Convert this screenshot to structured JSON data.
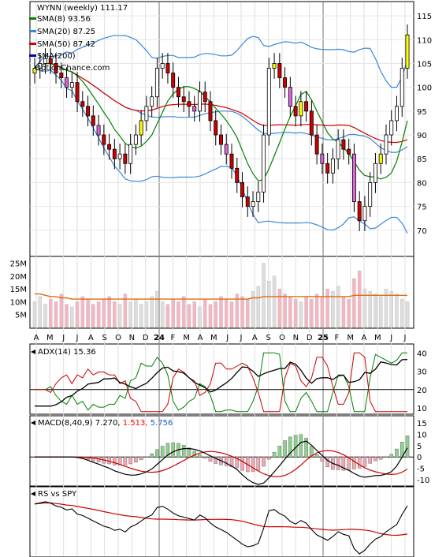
{
  "chart_data": [
    {
      "panel": "price",
      "type": "candlestick",
      "title": "WYNN (weekly)",
      "last_close": "111.17",
      "watermark": "OptionChance.com",
      "legend": [
        {
          "label": "SMA(8)",
          "value": "93.56",
          "color": "#008000"
        },
        {
          "label": "SMA(20)",
          "value": "87.25",
          "color": "#3a86d8"
        },
        {
          "label": "SMA(50)",
          "value": "87.42",
          "color": "#d40000"
        },
        {
          "label": "SMA(200)",
          "value": "",
          "color": "#0000c0"
        }
      ],
      "y_ticks": [
        "115",
        "110",
        "105",
        "100",
        "95",
        "90",
        "85",
        "80",
        "75",
        "70"
      ],
      "ylim": [
        65,
        117
      ],
      "close_approx": [
        104,
        105,
        106,
        105,
        103,
        102,
        100,
        101,
        97,
        96,
        94,
        92,
        90,
        88,
        87,
        85,
        86,
        84,
        88,
        90,
        93,
        96,
        98,
        104,
        105,
        103,
        100,
        98,
        97,
        96,
        95,
        99,
        97,
        93,
        90,
        88,
        86,
        83,
        80,
        77,
        75,
        76,
        78,
        90,
        104,
        105,
        102,
        100,
        96,
        94,
        97,
        95,
        90,
        86,
        84,
        82,
        85,
        89,
        87,
        86,
        76,
        72,
        75,
        80,
        84,
        86,
        90,
        93,
        96,
        104,
        111
      ]
    },
    {
      "panel": "volume",
      "type": "bar",
      "y_ticks": [
        "25M",
        "20M",
        "15M",
        "10M",
        "5M"
      ],
      "ylim": [
        0,
        27
      ],
      "values_m_approx": [
        10,
        12,
        9,
        11,
        10,
        13,
        9,
        8,
        10,
        12,
        11,
        9,
        10,
        11,
        12,
        10,
        9,
        13,
        10,
        11,
        9,
        10,
        12,
        14,
        10,
        9,
        11,
        10,
        12,
        9,
        10,
        8,
        11,
        9,
        10,
        12,
        11,
        10,
        13,
        12,
        11,
        14,
        16,
        25,
        18,
        20,
        15,
        13,
        12,
        11,
        10,
        12,
        11,
        13,
        12,
        15,
        14,
        16,
        12,
        11,
        19,
        22,
        15,
        14,
        13,
        12,
        15,
        14,
        13,
        11,
        10
      ],
      "sma_m_approx": [
        13,
        13,
        12.5,
        12,
        12,
        11.5,
        11.5,
        11,
        11,
        11,
        11,
        11,
        11,
        11,
        11,
        11,
        11,
        11,
        11,
        11,
        11,
        11,
        11,
        11,
        11,
        11,
        11,
        11,
        11,
        11,
        11,
        11,
        11,
        11,
        11,
        11,
        11,
        11,
        11,
        11,
        11,
        11.5,
        11.5,
        12,
        12,
        12,
        12,
        12,
        12,
        12,
        12,
        12,
        12,
        12,
        12,
        12,
        12,
        12,
        12,
        12,
        12.5,
        12.5,
        12.5,
        12.5,
        12.5,
        12.5,
        12.5,
        12.5,
        12.5,
        12.5,
        12.5
      ]
    },
    {
      "panel": "adx",
      "type": "line",
      "label": "ADX(14)",
      "value": "15.36",
      "y_ticks": [
        "40",
        "30",
        "20",
        "10"
      ],
      "ylim": [
        7,
        44
      ]
    },
    {
      "panel": "macd",
      "type": "line+histogram",
      "label": "MACD(8,40,9)",
      "macd": "7.270,",
      "signal": "1.513,",
      "signal_color": "#ff0000",
      "hist": "5.756",
      "hist_color": "#2255cc",
      "y_ticks": [
        "15",
        "10",
        "5",
        "0",
        "-5",
        "-10"
      ],
      "ylim": [
        -12,
        17
      ]
    },
    {
      "panel": "rs",
      "type": "line",
      "label": "RS vs SPY"
    }
  ],
  "x_axis": {
    "labels": [
      "A",
      "M",
      "J",
      "J",
      "A",
      "S",
      "O",
      "N",
      "D",
      "24",
      "F",
      "M",
      "A",
      "M",
      "J",
      "J",
      "A",
      "S",
      "O",
      "N",
      "D",
      "25",
      "F",
      "M",
      "A",
      "M",
      "J",
      "J"
    ]
  }
}
